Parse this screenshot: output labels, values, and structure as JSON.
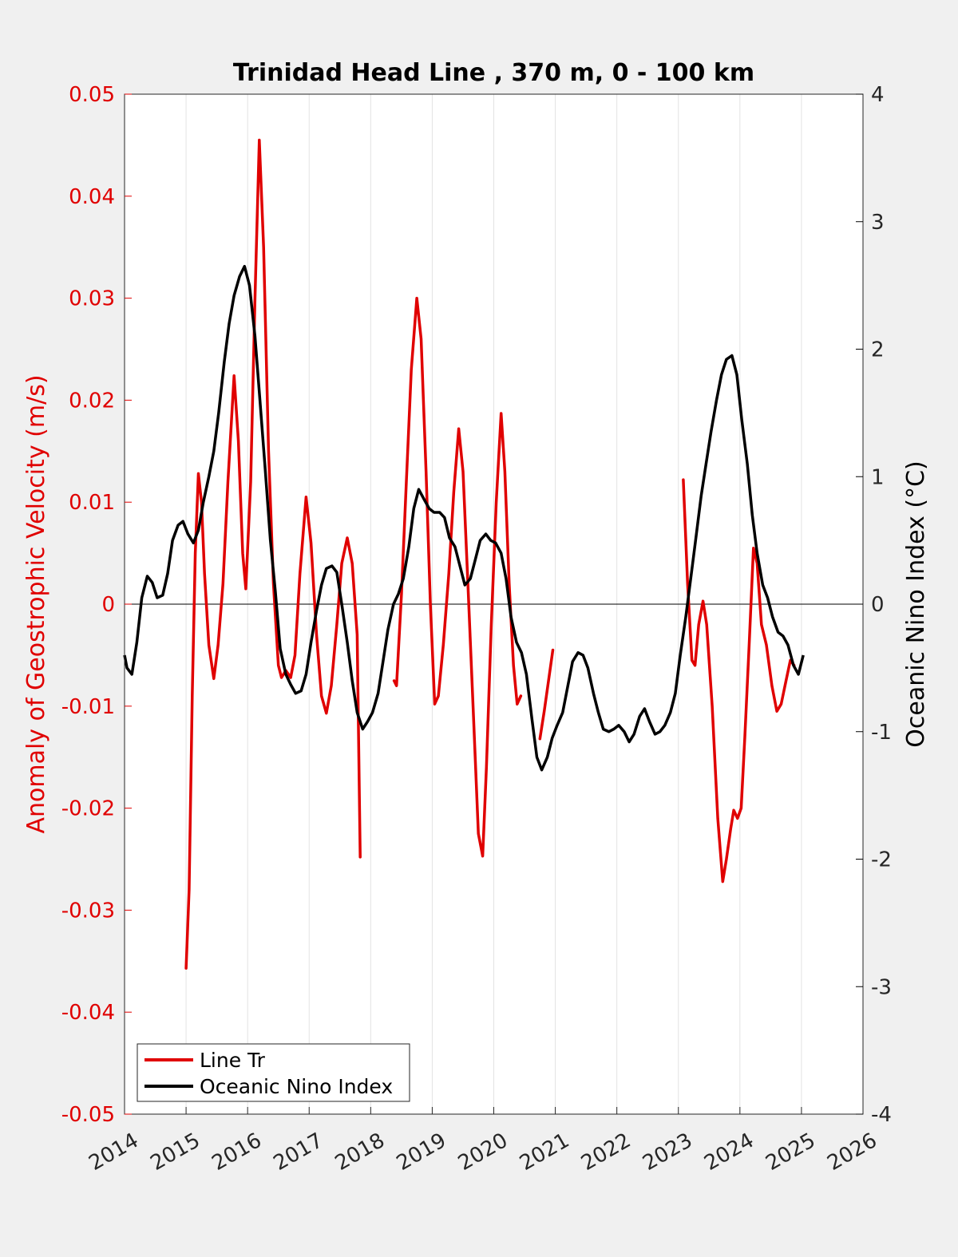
{
  "chart_data": {
    "type": "line",
    "title": "Trinidad Head Line , 370 m, 0 - 100 km",
    "xlabel": "",
    "ylabel_left": "Anomaly of Geostrophic Velocity (m/s)",
    "ylabel_right": "Oceanic Nino Index (°C)",
    "xlim": [
      2014,
      2026
    ],
    "ylim_left": [
      -0.05,
      0.05
    ],
    "ylim_right": [
      -4,
      4
    ],
    "x_ticks": [
      "2014",
      "2015",
      "2016",
      "2017",
      "2018",
      "2019",
      "2020",
      "2021",
      "2022",
      "2023",
      "2024",
      "2025",
      "2026"
    ],
    "y_left_ticks": [
      "-0.05",
      "-0.04",
      "-0.03",
      "-0.02",
      "-0.01",
      "0",
      "0.01",
      "0.02",
      "0.03",
      "0.04",
      "0.05"
    ],
    "y_right_ticks": [
      "-4",
      "-3",
      "-2",
      "-1",
      "0",
      "1",
      "2",
      "3",
      "4"
    ],
    "grid": "vertical",
    "zero_line": true,
    "legend_position": "bottom-left",
    "colors": {
      "line_tr": "#e00000",
      "oni": "#000000",
      "left_axis": "#e00000",
      "right_axis": "#000000"
    },
    "series": [
      {
        "name": "Line Tr",
        "axis": "left",
        "segments": [
          [
            [
              2015.0,
              -0.0357
            ],
            [
              2015.05,
              -0.028
            ],
            [
              2015.1,
              -0.009
            ],
            [
              2015.15,
              0.005
            ],
            [
              2015.2,
              0.0128
            ],
            [
              2015.25,
              0.01
            ],
            [
              2015.3,
              0.003
            ],
            [
              2015.37,
              -0.004
            ],
            [
              2015.45,
              -0.0073
            ],
            [
              2015.52,
              -0.004
            ],
            [
              2015.6,
              0.002
            ],
            [
              2015.68,
              0.012
            ],
            [
              2015.78,
              0.0224
            ],
            [
              2015.85,
              0.016
            ],
            [
              2015.92,
              0.005
            ],
            [
              2015.97,
              0.0015
            ],
            [
              2016.05,
              0.012
            ],
            [
              2016.12,
              0.03
            ],
            [
              2016.19,
              0.0455
            ],
            [
              2016.26,
              0.035
            ],
            [
              2016.34,
              0.015
            ],
            [
              2016.42,
              0.002
            ],
            [
              2016.5,
              -0.006
            ],
            [
              2016.55,
              -0.0072
            ],
            [
              2016.62,
              -0.0065
            ],
            [
              2016.7,
              -0.0072
            ],
            [
              2016.77,
              -0.005
            ],
            [
              2016.85,
              0.003
            ],
            [
              2016.95,
              0.0105
            ],
            [
              2017.03,
              0.006
            ],
            [
              2017.12,
              -0.003
            ],
            [
              2017.2,
              -0.009
            ],
            [
              2017.28,
              -0.0107
            ],
            [
              2017.36,
              -0.008
            ],
            [
              2017.45,
              -0.002
            ],
            [
              2017.53,
              0.004
            ],
            [
              2017.62,
              0.0065
            ],
            [
              2017.7,
              0.004
            ],
            [
              2017.78,
              -0.003
            ],
            [
              2017.83,
              -0.0248
            ]
          ],
          [
            [
              2018.38,
              -0.0075
            ],
            [
              2018.42,
              -0.008
            ],
            [
              2018.5,
              0.001
            ],
            [
              2018.58,
              0.012
            ],
            [
              2018.66,
              0.023
            ],
            [
              2018.75,
              0.03
            ],
            [
              2018.82,
              0.026
            ],
            [
              2018.9,
              0.013
            ],
            [
              2018.97,
              0.0
            ],
            [
              2019.04,
              -0.0098
            ],
            [
              2019.1,
              -0.009
            ],
            [
              2019.18,
              -0.004
            ],
            [
              2019.27,
              0.003
            ],
            [
              2019.35,
              0.011
            ],
            [
              2019.43,
              0.0172
            ],
            [
              2019.5,
              0.013
            ],
            [
              2019.58,
              0.002
            ],
            [
              2019.67,
              -0.011
            ],
            [
              2019.75,
              -0.0225
            ],
            [
              2019.82,
              -0.0247
            ],
            [
              2019.88,
              -0.016
            ],
            [
              2019.96,
              -0.002
            ],
            [
              2020.04,
              0.01
            ],
            [
              2020.12,
              0.0187
            ],
            [
              2020.18,
              0.013
            ],
            [
              2020.25,
              0.002
            ],
            [
              2020.32,
              -0.006
            ],
            [
              2020.38,
              -0.0098
            ],
            [
              2020.44,
              -0.009
            ]
          ],
          [
            [
              2020.75,
              -0.0132
            ],
            [
              2020.82,
              -0.0105
            ],
            [
              2020.89,
              -0.0075
            ],
            [
              2020.96,
              -0.0045
            ]
          ],
          [
            [
              2023.08,
              0.0122
            ],
            [
              2023.15,
              0.002
            ],
            [
              2023.22,
              -0.0055
            ],
            [
              2023.27,
              -0.006
            ],
            [
              2023.33,
              -0.002
            ],
            [
              2023.4,
              0.0003
            ],
            [
              2023.46,
              -0.002
            ],
            [
              2023.55,
              -0.01
            ],
            [
              2023.64,
              -0.021
            ],
            [
              2023.72,
              -0.0272
            ],
            [
              2023.78,
              -0.025
            ],
            [
              2023.85,
              -0.022
            ],
            [
              2023.9,
              -0.0202
            ],
            [
              2023.96,
              -0.021
            ],
            [
              2024.02,
              -0.02
            ],
            [
              2024.08,
              -0.013
            ],
            [
              2024.15,
              -0.004
            ],
            [
              2024.22,
              0.0055
            ],
            [
              2024.28,
              0.004
            ],
            [
              2024.35,
              -0.002
            ],
            [
              2024.43,
              -0.004
            ],
            [
              2024.52,
              -0.008
            ],
            [
              2024.6,
              -0.0105
            ],
            [
              2024.67,
              -0.0098
            ],
            [
              2024.75,
              -0.0075
            ],
            [
              2024.82,
              -0.0055
            ],
            [
              2024.88,
              -0.006
            ]
          ]
        ]
      },
      {
        "name": "Oceanic Nino Index",
        "axis": "right",
        "points": [
          [
            2014.0,
            -0.4
          ],
          [
            2014.04,
            -0.5
          ],
          [
            2014.12,
            -0.55
          ],
          [
            2014.2,
            -0.3
          ],
          [
            2014.28,
            0.05
          ],
          [
            2014.37,
            0.22
          ],
          [
            2014.45,
            0.17
          ],
          [
            2014.53,
            0.05
          ],
          [
            2014.62,
            0.07
          ],
          [
            2014.7,
            0.24
          ],
          [
            2014.78,
            0.5
          ],
          [
            2014.87,
            0.62
          ],
          [
            2014.95,
            0.65
          ],
          [
            2015.03,
            0.55
          ],
          [
            2015.12,
            0.48
          ],
          [
            2015.2,
            0.58
          ],
          [
            2015.28,
            0.8
          ],
          [
            2015.37,
            1.0
          ],
          [
            2015.45,
            1.2
          ],
          [
            2015.53,
            1.5
          ],
          [
            2015.62,
            1.9
          ],
          [
            2015.7,
            2.2
          ],
          [
            2015.78,
            2.42
          ],
          [
            2015.87,
            2.57
          ],
          [
            2015.95,
            2.65
          ],
          [
            2016.03,
            2.5
          ],
          [
            2016.12,
            2.1
          ],
          [
            2016.2,
            1.6
          ],
          [
            2016.28,
            1.1
          ],
          [
            2016.37,
            0.5
          ],
          [
            2016.45,
            0.1
          ],
          [
            2016.53,
            -0.35
          ],
          [
            2016.62,
            -0.55
          ],
          [
            2016.7,
            -0.63
          ],
          [
            2016.78,
            -0.7
          ],
          [
            2016.87,
            -0.68
          ],
          [
            2016.95,
            -0.55
          ],
          [
            2017.03,
            -0.3
          ],
          [
            2017.12,
            -0.05
          ],
          [
            2017.2,
            0.15
          ],
          [
            2017.28,
            0.28
          ],
          [
            2017.37,
            0.3
          ],
          [
            2017.45,
            0.25
          ],
          [
            2017.53,
            0.0
          ],
          [
            2017.62,
            -0.3
          ],
          [
            2017.7,
            -0.6
          ],
          [
            2017.78,
            -0.85
          ],
          [
            2017.87,
            -0.98
          ],
          [
            2017.95,
            -0.92
          ],
          [
            2018.03,
            -0.85
          ],
          [
            2018.12,
            -0.7
          ],
          [
            2018.2,
            -0.45
          ],
          [
            2018.28,
            -0.2
          ],
          [
            2018.37,
            0.0
          ],
          [
            2018.45,
            0.08
          ],
          [
            2018.53,
            0.2
          ],
          [
            2018.62,
            0.45
          ],
          [
            2018.7,
            0.75
          ],
          [
            2018.78,
            0.9
          ],
          [
            2018.87,
            0.82
          ],
          [
            2018.95,
            0.75
          ],
          [
            2019.03,
            0.72
          ],
          [
            2019.12,
            0.72
          ],
          [
            2019.2,
            0.68
          ],
          [
            2019.28,
            0.52
          ],
          [
            2019.37,
            0.45
          ],
          [
            2019.45,
            0.3
          ],
          [
            2019.53,
            0.15
          ],
          [
            2019.62,
            0.2
          ],
          [
            2019.7,
            0.35
          ],
          [
            2019.78,
            0.5
          ],
          [
            2019.87,
            0.55
          ],
          [
            2019.95,
            0.5
          ],
          [
            2020.03,
            0.48
          ],
          [
            2020.12,
            0.4
          ],
          [
            2020.2,
            0.2
          ],
          [
            2020.28,
            -0.1
          ],
          [
            2020.37,
            -0.3
          ],
          [
            2020.45,
            -0.38
          ],
          [
            2020.53,
            -0.55
          ],
          [
            2020.62,
            -0.9
          ],
          [
            2020.7,
            -1.2
          ],
          [
            2020.78,
            -1.3
          ],
          [
            2020.87,
            -1.2
          ],
          [
            2020.95,
            -1.05
          ],
          [
            2021.03,
            -0.95
          ],
          [
            2021.12,
            -0.85
          ],
          [
            2021.2,
            -0.65
          ],
          [
            2021.28,
            -0.45
          ],
          [
            2021.37,
            -0.38
          ],
          [
            2021.45,
            -0.4
          ],
          [
            2021.53,
            -0.5
          ],
          [
            2021.62,
            -0.7
          ],
          [
            2021.7,
            -0.85
          ],
          [
            2021.78,
            -0.98
          ],
          [
            2021.87,
            -1.0
          ],
          [
            2021.95,
            -0.98
          ],
          [
            2022.03,
            -0.95
          ],
          [
            2022.12,
            -1.0
          ],
          [
            2022.2,
            -1.08
          ],
          [
            2022.28,
            -1.02
          ],
          [
            2022.37,
            -0.88
          ],
          [
            2022.45,
            -0.82
          ],
          [
            2022.53,
            -0.92
          ],
          [
            2022.62,
            -1.02
          ],
          [
            2022.7,
            -1.0
          ],
          [
            2022.78,
            -0.95
          ],
          [
            2022.87,
            -0.85
          ],
          [
            2022.95,
            -0.7
          ],
          [
            2023.03,
            -0.4
          ],
          [
            2023.12,
            -0.1
          ],
          [
            2023.2,
            0.2
          ],
          [
            2023.28,
            0.5
          ],
          [
            2023.37,
            0.85
          ],
          [
            2023.45,
            1.1
          ],
          [
            2023.53,
            1.35
          ],
          [
            2023.62,
            1.6
          ],
          [
            2023.7,
            1.8
          ],
          [
            2023.78,
            1.92
          ],
          [
            2023.87,
            1.95
          ],
          [
            2023.95,
            1.8
          ],
          [
            2024.03,
            1.45
          ],
          [
            2024.12,
            1.1
          ],
          [
            2024.2,
            0.7
          ],
          [
            2024.28,
            0.4
          ],
          [
            2024.37,
            0.15
          ],
          [
            2024.45,
            0.05
          ],
          [
            2024.53,
            -0.1
          ],
          [
            2024.62,
            -0.22
          ],
          [
            2024.7,
            -0.25
          ],
          [
            2024.78,
            -0.32
          ],
          [
            2024.87,
            -0.48
          ],
          [
            2024.95,
            -0.55
          ],
          [
            2025.03,
            -0.4
          ]
        ]
      }
    ]
  }
}
